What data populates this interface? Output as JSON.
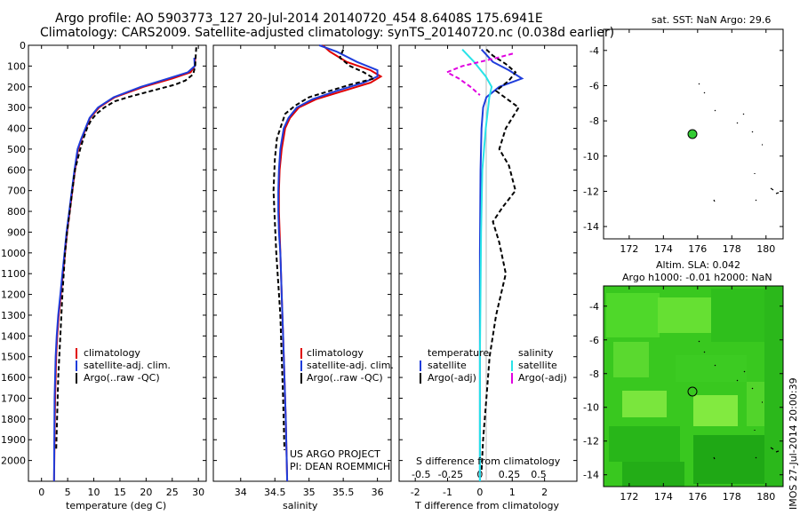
{
  "title": {
    "line1": "Argo profile: AO 5903773_127 20-Jul-2014 20140720_454 8.6408S 175.6941E",
    "line2": "Climatology: CARS2009. Satellite-adjusted climatology: synTS_20140720.nc (0.038d earlier)"
  },
  "colors": {
    "climatology": "#e00000",
    "satellite": "#1f3ddb",
    "argo": "#000000",
    "sat_salinity": "#29e3e8",
    "argo_salinity": "#e000e0",
    "marker": "#33cc33"
  },
  "depth_ticks": [
    "0",
    "100",
    "200",
    "300",
    "400",
    "500",
    "600",
    "700",
    "800",
    "900",
    "1000",
    "1100",
    "1200",
    "1300",
    "1400",
    "1500",
    "1600",
    "1700",
    "1800",
    "1900",
    "2000"
  ],
  "panel1": {
    "xlabel": "temperature (deg C)",
    "xticks": [
      "0",
      "5",
      "10",
      "15",
      "20",
      "25",
      "30"
    ],
    "legend": [
      "climatology",
      "satellite-adj. clim.",
      "Argo(..raw -QC)"
    ]
  },
  "panel2": {
    "xlabel": "salinity",
    "xticks": [
      "34",
      "34.5",
      "35",
      "35.5",
      "36"
    ],
    "legend": [
      "climatology",
      "satellite-adj. clim.",
      "Argo(..raw -QC)"
    ],
    "credit1": "US ARGO PROJECT",
    "credit2": "PI: DEAN ROEMMICH"
  },
  "panel3": {
    "top_label": "S difference from climatology",
    "top_ticks": [
      "-0.5",
      "-0.25",
      "0",
      "0.25",
      "0.5"
    ],
    "xlabel": "T difference from climatology",
    "xticks": [
      "-2",
      "-1",
      "0",
      "1",
      "2"
    ],
    "legend_head_t": "temperature",
    "legend_head_s": "salinity",
    "legend_t": [
      "satellite",
      "Argo(-adj)"
    ],
    "legend_s": [
      "satellite",
      "Argo(-adj)"
    ]
  },
  "map1": {
    "title": "sat. SST: NaN Argo: 29.6",
    "yticks": [
      "-4",
      "-6",
      "-8",
      "-10",
      "-12",
      "-14"
    ],
    "xticks": [
      "172",
      "174",
      "176",
      "178",
      "180"
    ]
  },
  "map2": {
    "title1": "Altim. SLA: 0.042",
    "title2": "Argo h1000: -0.01 h2000: NaN",
    "yticks": [
      "-4",
      "-6",
      "-8",
      "-10",
      "-12",
      "-14"
    ],
    "xticks": [
      "172",
      "174",
      "176",
      "178",
      "180"
    ]
  },
  "footer": "IMOS 27-Jul-2014 20:00:39",
  "chart_data": [
    {
      "type": "line",
      "title": "",
      "xlabel": "temperature (deg C)",
      "ylabel": "",
      "xlim": [
        -2.5,
        31.5
      ],
      "ylim": [
        2100,
        0
      ],
      "series": [
        {
          "name": "climatology",
          "x": [
            29.4,
            29.3,
            28.5,
            25.0,
            19.5,
            14.0,
            11.0,
            9.3,
            8.5,
            7.7,
            7.0,
            6.4,
            5.9,
            5.4,
            4.9,
            4.5,
            4.1,
            3.7,
            3.3,
            3.0,
            2.8,
            2.6,
            2.4
          ],
          "y": [
            60,
            100,
            130,
            160,
            200,
            250,
            300,
            350,
            400,
            450,
            500,
            600,
            700,
            800,
            900,
            1000,
            1100,
            1200,
            1300,
            1400,
            1500,
            1700,
            2100
          ]
        },
        {
          "name": "satellite-adj. clim.",
          "x": [
            29.2,
            29.3,
            28.0,
            24.2,
            19.0,
            13.8,
            10.8,
            9.2,
            8.4,
            7.6,
            6.9,
            6.3,
            5.8,
            5.3,
            4.8,
            4.4,
            4.0,
            3.6,
            3.2,
            2.9,
            2.7,
            2.5,
            2.4
          ],
          "y": [
            60,
            100,
            130,
            160,
            200,
            250,
            300,
            350,
            400,
            450,
            500,
            600,
            700,
            800,
            900,
            1000,
            1100,
            1200,
            1300,
            1400,
            1500,
            1700,
            2100
          ]
        },
        {
          "name": "Argo(..raw -QC)",
          "x": [
            29.6,
            29.5,
            29.4,
            29.0,
            27.5,
            25.5,
            21.0,
            16.5,
            14.0,
            12.0,
            10.5,
            9.5,
            8.7,
            8.0,
            7.4,
            6.9,
            6.4,
            5.9,
            5.4,
            4.9,
            4.5,
            4.0,
            3.6,
            3.2,
            2.8
          ],
          "y": [
            10,
            50,
            100,
            140,
            170,
            190,
            220,
            250,
            270,
            300,
            330,
            360,
            400,
            450,
            500,
            550,
            600,
            700,
            800,
            900,
            1000,
            1200,
            1400,
            1600,
            1950
          ]
        }
      ]
    },
    {
      "type": "line",
      "title": "",
      "xlabel": "salinity",
      "ylabel": "",
      "xlim": [
        33.6,
        36.2
      ],
      "ylim": [
        2100,
        0
      ],
      "series": [
        {
          "name": "climatology",
          "x": [
            35.2,
            35.3,
            35.55,
            35.9,
            36.05,
            35.9,
            35.5,
            35.1,
            34.85,
            34.72,
            34.65,
            34.6,
            34.57,
            34.56,
            34.56,
            34.57,
            34.58,
            34.6,
            34.62,
            34.64,
            34.66,
            34.68
          ],
          "y": [
            0,
            30,
            80,
            120,
            150,
            180,
            220,
            260,
            300,
            350,
            400,
            500,
            600,
            700,
            800,
            900,
            1000,
            1200,
            1400,
            1600,
            1800,
            2100
          ]
        },
        {
          "name": "satellite-adj. clim.",
          "x": [
            35.15,
            35.4,
            35.7,
            36.0,
            36.0,
            35.8,
            35.4,
            35.05,
            34.82,
            34.7,
            34.63,
            34.58,
            34.56,
            34.55,
            34.55,
            34.56,
            34.58,
            34.6,
            34.62,
            34.64,
            34.66,
            34.68
          ],
          "y": [
            0,
            30,
            80,
            120,
            150,
            180,
            220,
            260,
            300,
            350,
            400,
            500,
            600,
            700,
            800,
            900,
            1000,
            1200,
            1400,
            1600,
            1800,
            2100
          ]
        },
        {
          "name": "Argo(..raw -QC)",
          "x": [
            35.5,
            35.45,
            35.6,
            35.8,
            35.95,
            35.6,
            35.3,
            35.0,
            34.8,
            34.65,
            34.6,
            34.53,
            34.5,
            34.48,
            34.5,
            34.52,
            34.55,
            34.58,
            34.6,
            34.62,
            34.64
          ],
          "y": [
            20,
            60,
            100,
            130,
            160,
            190,
            220,
            250,
            290,
            330,
            380,
            450,
            550,
            700,
            850,
            1000,
            1150,
            1300,
            1500,
            1700,
            1950
          ]
        }
      ]
    },
    {
      "type": "line",
      "title": "",
      "xlabel": "T difference from climatology",
      "ylabel": "",
      "xlim": [
        -2.5,
        3.0
      ],
      "ylim": [
        2100,
        0
      ],
      "series": [
        {
          "name": "temperature satellite",
          "x": [
            0.05,
            0.4,
            0.9,
            1.3,
            0.6,
            0.2,
            0.1,
            0.05,
            0.02,
            0.0,
            0.0,
            0.0
          ],
          "y": [
            20,
            80,
            120,
            160,
            200,
            250,
            300,
            400,
            600,
            1000,
            1500,
            2100
          ]
        },
        {
          "name": "temperature Argo(-adj)",
          "x": [
            0.2,
            0.4,
            0.8,
            1.1,
            0.9,
            0.5,
            1.2,
            0.8,
            0.6,
            0.9,
            1.1,
            0.7,
            0.4,
            0.6,
            0.8,
            0.5,
            0.3,
            0.2,
            0.1,
            0.05
          ],
          "y": [
            20,
            50,
            90,
            130,
            170,
            220,
            300,
            400,
            500,
            580,
            700,
            780,
            850,
            950,
            1100,
            1300,
            1500,
            1700,
            1900,
            2050
          ]
        },
        {
          "name": "salinity satellite",
          "x": [
            -0.15,
            -0.05,
            0.05,
            0.1,
            0.08,
            0.05,
            0.02,
            0.01,
            0.0,
            0.0
          ],
          "y": [
            20,
            80,
            150,
            200,
            250,
            400,
            600,
            900,
            1500,
            2100
          ]
        },
        {
          "name": "salinity Argo(-adj)",
          "x": [
            0.28,
            0.15,
            0.0,
            -0.15,
            -0.28,
            -0.18,
            -0.08,
            0.0
          ],
          "y": [
            40,
            60,
            80,
            100,
            130,
            160,
            200,
            240
          ]
        }
      ]
    }
  ]
}
